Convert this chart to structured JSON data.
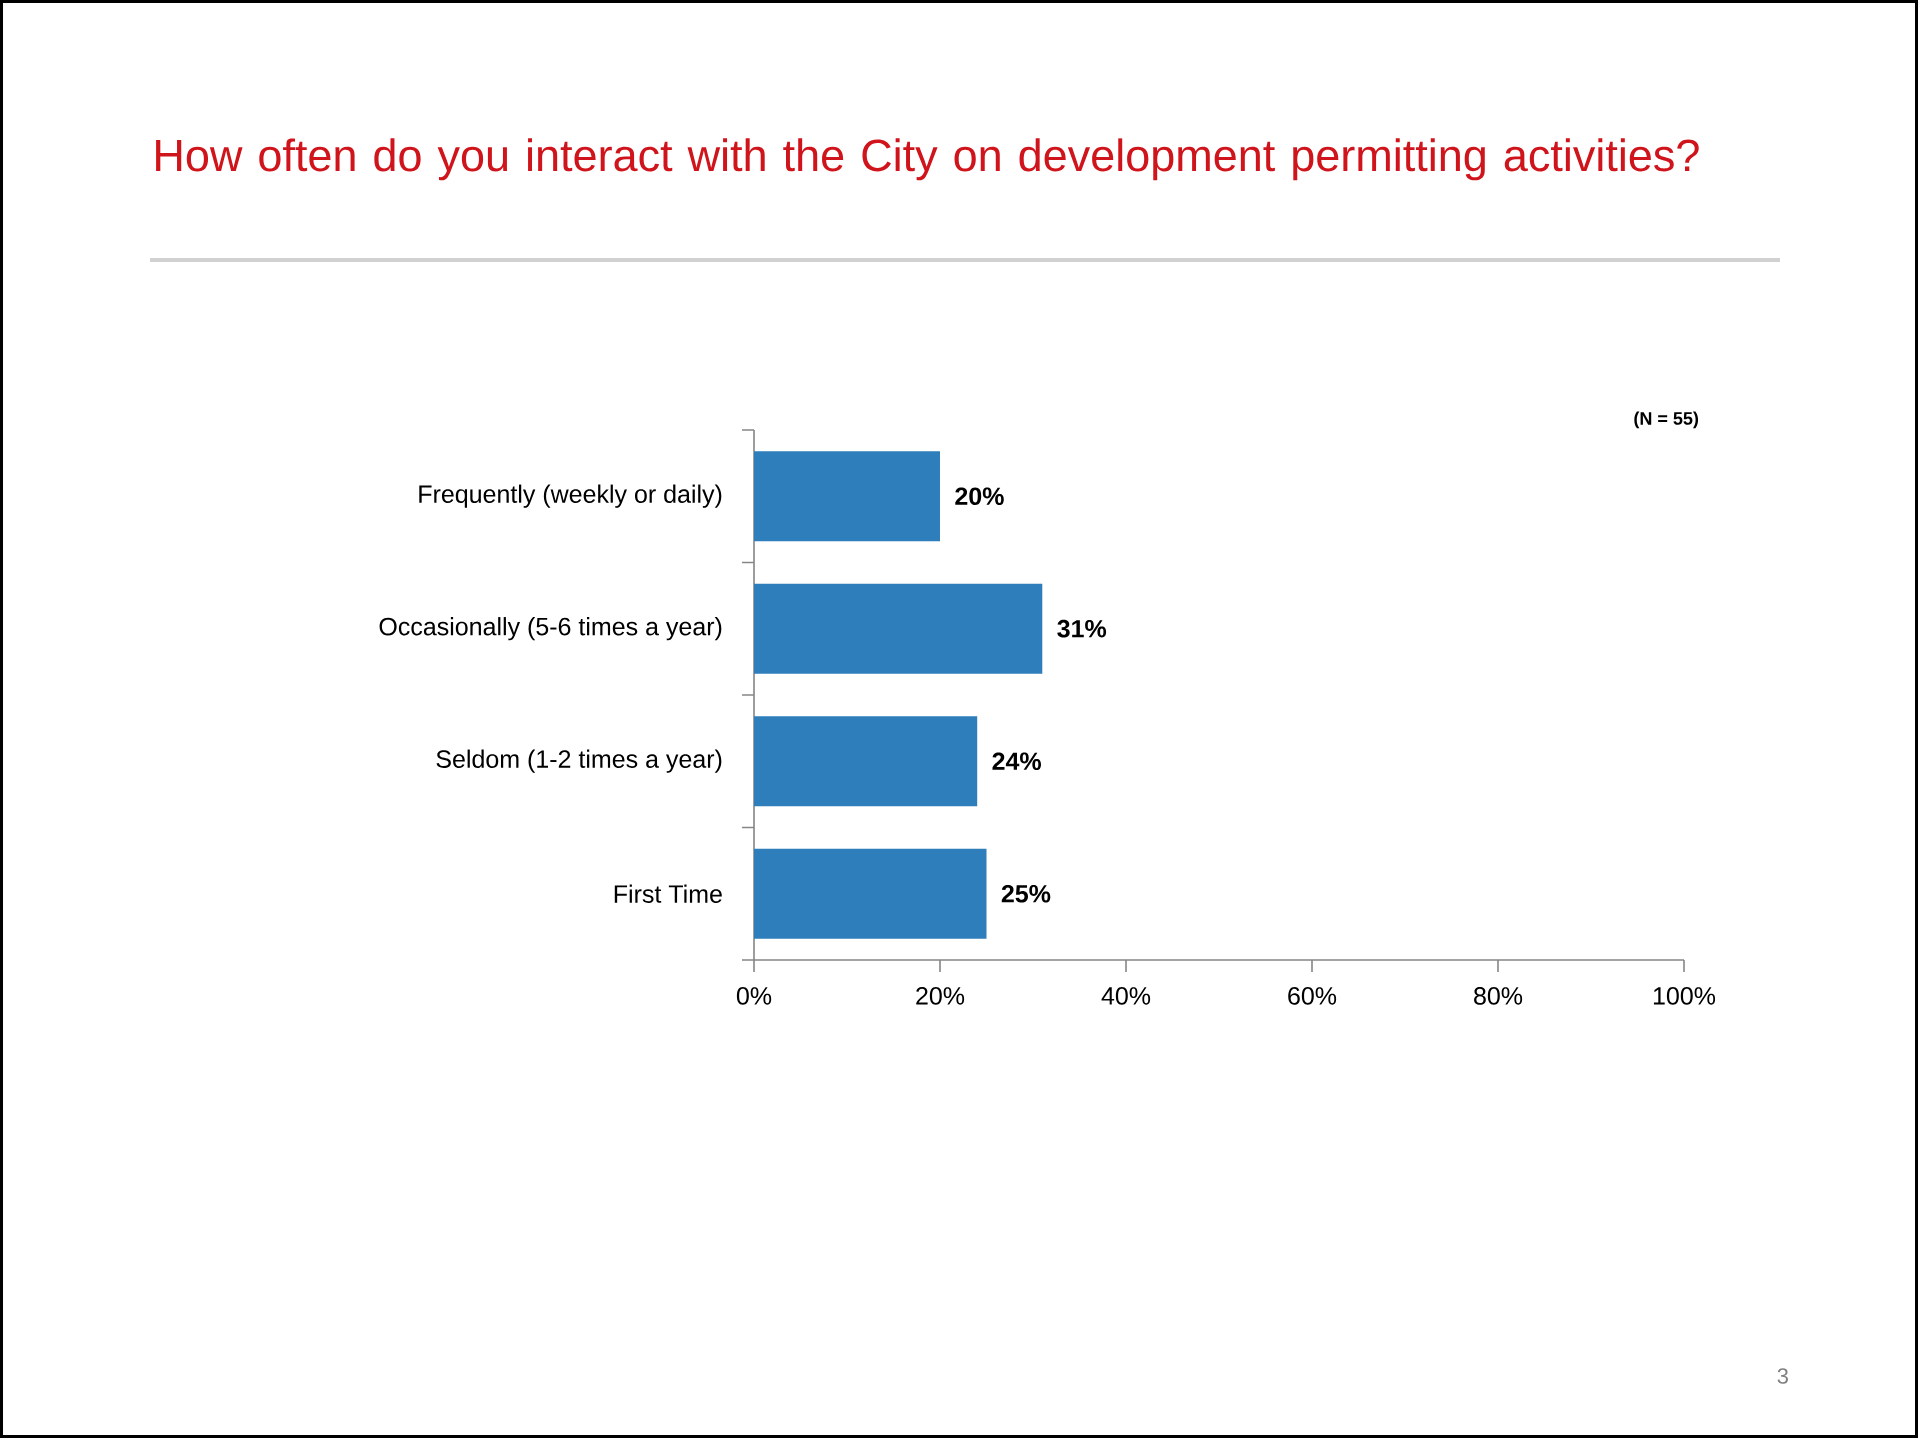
{
  "chart_data": {
    "type": "bar",
    "orientation": "horizontal",
    "title": "How often do you interact with the City on development permitting activities?",
    "categories": [
      "Frequently (weekly or daily)",
      "Occasionally (5-6 times a year)",
      "Seldom (1-2 times a year)",
      "First Time"
    ],
    "values": [
      20,
      31,
      24,
      25
    ],
    "value_labels": [
      "20%",
      "31%",
      "24%",
      "25%"
    ],
    "color": "#2e7ebb",
    "xlim": [
      0,
      100
    ],
    "xticks": [
      {
        "value": 0,
        "label": "0%"
      },
      {
        "value": 20,
        "label": "20%"
      },
      {
        "value": 40,
        "label": "40%"
      },
      {
        "value": 60,
        "label": "60%"
      },
      {
        "value": 80,
        "label": "80%"
      },
      {
        "value": 100,
        "label": "100%"
      }
    ],
    "annotations": [
      "(N = 55)",
      "3"
    ]
  }
}
